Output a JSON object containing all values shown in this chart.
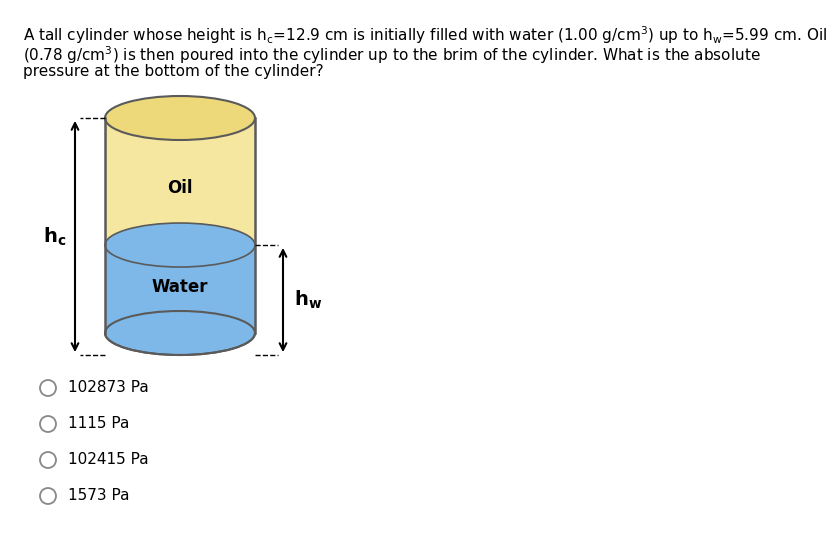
{
  "oil_color": "#F5E6A0",
  "oil_color_top": "#EDD87A",
  "water_color": "#7EB8E8",
  "water_color_dark": "#5A9AC8",
  "edge_color": "#5A5A5A",
  "background": "#ffffff",
  "text_color": "#000000",
  "choices": [
    "102873 Pa",
    "1115 Pa",
    "102415 Pa",
    "1573 Pa"
  ],
  "oil_label": "Oil",
  "water_label": "Water",
  "font_size_body": 11,
  "font_size_labels": 12,
  "font_size_choices": 11,
  "font_size_hc": 14,
  "font_size_hw": 14,
  "line1": "A tall cylinder whose height is h",
  "line1_mid": "=12.9 cm is initially filled with water (1.00 g/cm",
  "line1_end": ") up to h",
  "line1_tail": "=5.99 cm. Oil",
  "line2": "(0.78 g/cm",
  "line2_end": ") is then poured into the cylinder up to the brim of the cylinder. What is the absolute",
  "line3": "pressure at the bottom of the cylinder?"
}
